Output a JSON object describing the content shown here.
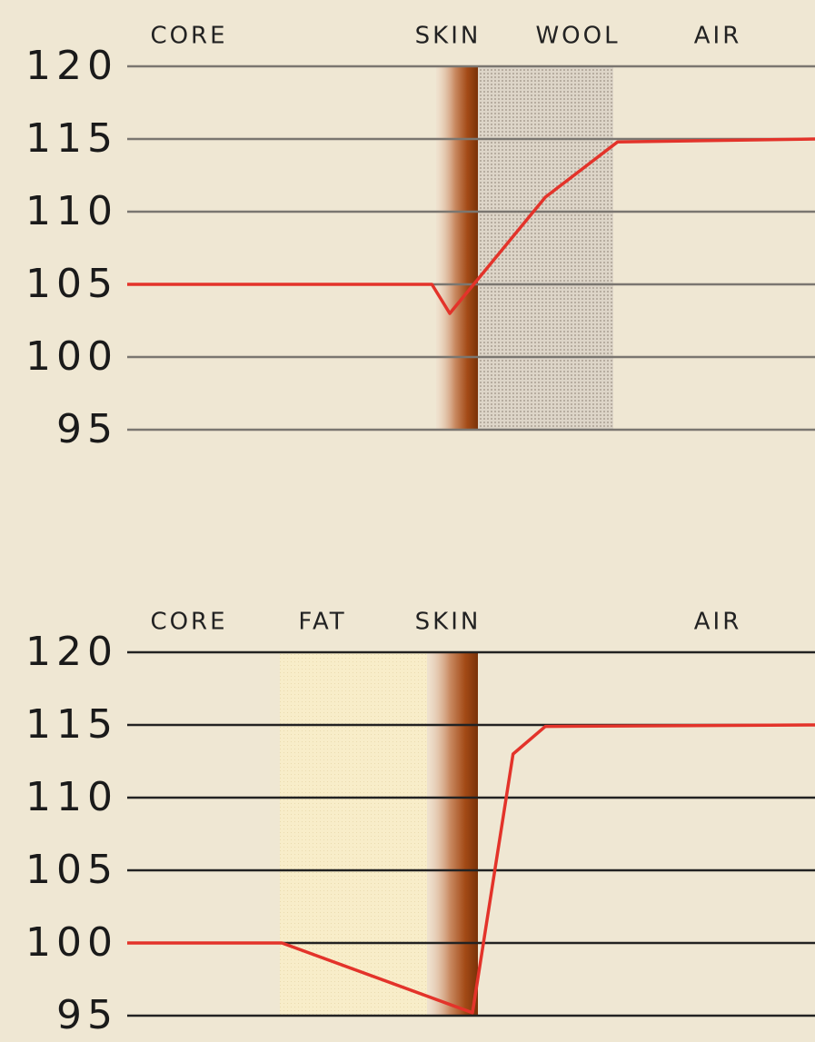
{
  "chart_data": [
    {
      "type": "line",
      "region_labels": [
        "CORE",
        "SKIN",
        "WOOL",
        "AIR"
      ],
      "x": [
        0,
        44.3,
        46.9,
        60.8,
        71.3,
        100
      ],
      "values": [
        105,
        105,
        103,
        111,
        114.8,
        115
      ],
      "color": "#e3332a",
      "xlim": [
        0,
        100
      ],
      "ylim": [
        95,
        120
      ],
      "yticks": [
        120,
        115,
        110,
        105,
        100,
        95
      ],
      "grid": true,
      "grid_color": "#7a7670"
    },
    {
      "type": "line",
      "region_labels": [
        "CORE",
        "FAT",
        "SKIN",
        "AIR"
      ],
      "x": [
        0,
        22.5,
        50.2,
        56.1,
        60.8,
        100
      ],
      "values": [
        100,
        100,
        95.2,
        113,
        114.9,
        115
      ],
      "color": "#e3332a",
      "xlim": [
        0,
        100
      ],
      "ylim": [
        95,
        120
      ],
      "yticks": [
        120,
        115,
        110,
        105,
        100,
        95
      ],
      "grid": true,
      "grid_color": "#222222"
    }
  ]
}
